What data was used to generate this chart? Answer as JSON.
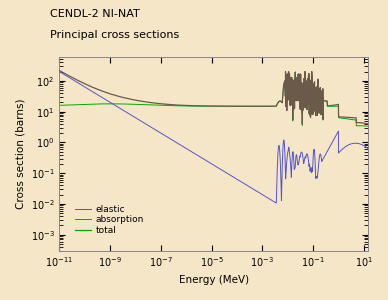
{
  "title_line1": "CENDL-2 NI-NAT",
  "title_line2": "Principal cross sections",
  "xlabel": "Energy (MeV)",
  "ylabel": "Cross section (barns)",
  "xmin": 1e-11,
  "xmax": 15,
  "ymin": 0.0003,
  "ymax": 600,
  "background_color": "#f5e6c8",
  "plot_bg_color": "#f5e6c8",
  "total_color": "#6b5a4a",
  "absorption_color": "#5555cc",
  "elastic_color": "#00aa00",
  "legend_labels": [
    "total",
    "absorption",
    "elastic"
  ],
  "legend_colors": [
    "#6b5a4a",
    "#5555cc",
    "#00aa00"
  ]
}
